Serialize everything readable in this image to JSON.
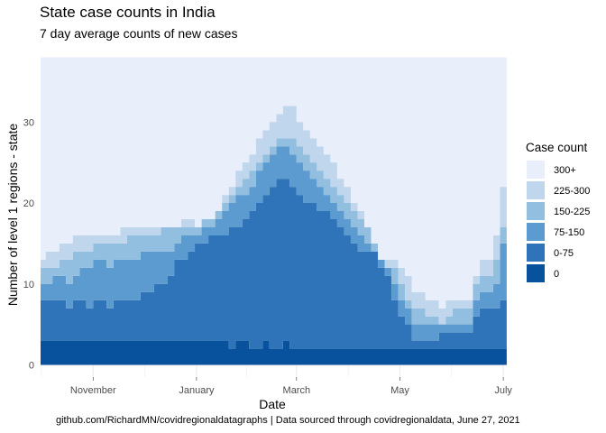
{
  "chart_data": {
    "type": "area",
    "subtype": "stacked step area",
    "title": "State case counts in India",
    "subtitle": "7 day average counts of new cases",
    "caption": "github.com/RichardMN/covidregionaldatagraphs | Data sourced through covidregionaldata, June 27, 2021",
    "xlabel": "Date",
    "ylabel": "Number of level 1 regions - state",
    "x_type": "date",
    "xlim": [
      "2020-10-01",
      "2021-07-02"
    ],
    "ylim": [
      -1.5,
      37.5
    ],
    "x_ticks": [
      {
        "date": "2020-11-01",
        "label": "November"
      },
      {
        "date": "2021-01-01",
        "label": "January"
      },
      {
        "date": "2021-03-01",
        "label": "March"
      },
      {
        "date": "2021-05-01",
        "label": "May"
      },
      {
        "date": "2021-07-01",
        "label": "July"
      }
    ],
    "y_ticks": [
      0,
      10,
      20,
      30
    ],
    "grid": true,
    "legend": {
      "title": "Case count",
      "position": "right"
    },
    "series": [
      {
        "name": "0",
        "color": "#08519c"
      },
      {
        "name": "0-75",
        "color": "#2f74b8"
      },
      {
        "name": "75-150",
        "color": "#5b9bcf"
      },
      {
        "name": "150-225",
        "color": "#92bfdf"
      },
      {
        "name": "225-300",
        "color": "#c0d6ec"
      },
      {
        "name": "300+",
        "color": "#e8effb"
      }
    ],
    "cumulative_upper_bounds": {
      "dates": [
        "2020-10-01",
        "2020-10-04",
        "2020-10-08",
        "2020-10-12",
        "2020-10-16",
        "2020-10-20",
        "2020-10-24",
        "2020-10-28",
        "2020-11-01",
        "2020-11-05",
        "2020-11-09",
        "2020-11-13",
        "2020-11-17",
        "2020-11-21",
        "2020-11-25",
        "2020-11-29",
        "2020-12-03",
        "2020-12-07",
        "2020-12-11",
        "2020-12-15",
        "2020-12-19",
        "2020-12-23",
        "2020-12-27",
        "2020-12-31",
        "2021-01-04",
        "2021-01-08",
        "2021-01-12",
        "2021-01-16",
        "2021-01-20",
        "2021-01-24",
        "2021-01-28",
        "2021-02-01",
        "2021-02-05",
        "2021-02-09",
        "2021-02-13",
        "2021-02-17",
        "2021-02-21",
        "2021-02-25",
        "2021-03-01",
        "2021-03-05",
        "2021-03-09",
        "2021-03-13",
        "2021-03-17",
        "2021-03-21",
        "2021-03-25",
        "2021-03-29",
        "2021-04-02",
        "2021-04-06",
        "2021-04-10",
        "2021-04-14",
        "2021-04-18",
        "2021-04-22",
        "2021-04-26",
        "2021-04-30",
        "2021-05-04",
        "2021-05-08",
        "2021-05-12",
        "2021-05-16",
        "2021-05-20",
        "2021-05-24",
        "2021-05-28",
        "2021-06-01",
        "2021-06-05",
        "2021-06-09",
        "2021-06-13",
        "2021-06-17",
        "2021-06-21",
        "2021-06-25",
        "2021-06-29"
      ],
      "0": [
        3,
        3,
        3,
        3,
        3,
        3,
        3,
        3,
        3,
        3,
        3,
        3,
        3,
        3,
        3,
        3,
        3,
        3,
        3,
        3,
        3,
        3,
        3,
        3,
        3,
        3,
        3,
        3,
        2,
        3,
        3,
        2,
        2,
        3,
        2,
        2,
        3,
        2,
        2,
        2,
        2,
        2,
        2,
        2,
        2,
        2,
        2,
        2,
        2,
        2,
        2,
        2,
        2,
        2,
        2,
        2,
        2,
        2,
        2,
        2,
        2,
        2,
        2,
        2,
        2,
        2,
        2,
        2,
        2
      ],
      "0-75": [
        8,
        8,
        8,
        8,
        7,
        8,
        8,
        7,
        8,
        8,
        7,
        8,
        8,
        8,
        8,
        9,
        9,
        10,
        10,
        11,
        13,
        13,
        14,
        15,
        15,
        16,
        16,
        16,
        17,
        17,
        18,
        19,
        20,
        21,
        22,
        23,
        23,
        22,
        21,
        20,
        20,
        19,
        19,
        18,
        17,
        16,
        15,
        14,
        14,
        14,
        12,
        11,
        8,
        6,
        5,
        3,
        3,
        3,
        3,
        4,
        4,
        4,
        4,
        4,
        6,
        7,
        7,
        7,
        8
      ],
      "75-150": [
        10,
        10,
        11,
        11,
        10,
        11,
        12,
        12,
        13,
        13,
        12,
        13,
        13,
        13,
        13,
        14,
        14,
        14,
        14,
        14,
        15,
        16,
        16,
        16,
        17,
        17,
        18,
        19,
        20,
        21,
        21,
        22,
        24,
        25,
        26,
        27,
        27,
        26,
        25,
        24,
        23,
        22,
        21,
        20,
        19,
        18,
        17,
        16,
        15,
        14,
        13,
        12,
        10,
        8,
        7,
        5,
        5,
        5,
        5,
        5,
        5,
        5,
        5,
        5,
        8,
        9,
        9,
        10,
        15
      ],
      "150-225": [
        12,
        12,
        12,
        13,
        13,
        14,
        14,
        14,
        15,
        15,
        15,
        15,
        15,
        16,
        16,
        16,
        16,
        16,
        17,
        17,
        17,
        17,
        17,
        17,
        18,
        18,
        19,
        20,
        21,
        22,
        23,
        24,
        25,
        26,
        27,
        28,
        28,
        28,
        27,
        26,
        25,
        24,
        23,
        22,
        21,
        20,
        19,
        18,
        17,
        15,
        13,
        12,
        12,
        10,
        8,
        7,
        7,
        6,
        6,
        5,
        6,
        7,
        7,
        7,
        10,
        11,
        11,
        13,
        17
      ],
      "225-300": [
        13,
        14,
        14,
        15,
        15,
        16,
        16,
        16,
        16,
        16,
        16,
        16,
        17,
        17,
        17,
        17,
        17,
        17,
        17,
        17,
        17,
        18,
        18,
        17,
        18,
        18,
        19,
        21,
        22,
        24,
        25,
        26,
        28,
        29,
        30,
        31,
        32,
        32,
        30,
        29,
        28,
        27,
        26,
        25,
        23,
        22,
        20,
        19,
        17,
        15,
        13,
        13,
        13,
        12,
        11,
        9,
        9,
        8,
        8,
        7,
        8,
        8,
        8,
        8,
        11,
        13,
        13,
        16,
        22
      ],
      "300+": [
        38,
        38,
        38,
        38,
        38,
        38,
        38,
        38,
        38,
        38,
        38,
        38,
        38,
        38,
        38,
        38,
        38,
        38,
        38,
        38,
        38,
        38,
        38,
        38,
        38,
        38,
        38,
        38,
        38,
        38,
        38,
        38,
        38,
        38,
        38,
        38,
        38,
        38,
        38,
        38,
        38,
        38,
        38,
        38,
        38,
        38,
        38,
        38,
        38,
        38,
        38,
        38,
        38,
        38,
        38,
        38,
        38,
        38,
        38,
        38,
        38,
        38,
        38,
        38,
        38,
        38,
        38,
        38,
        38
      ]
    }
  }
}
